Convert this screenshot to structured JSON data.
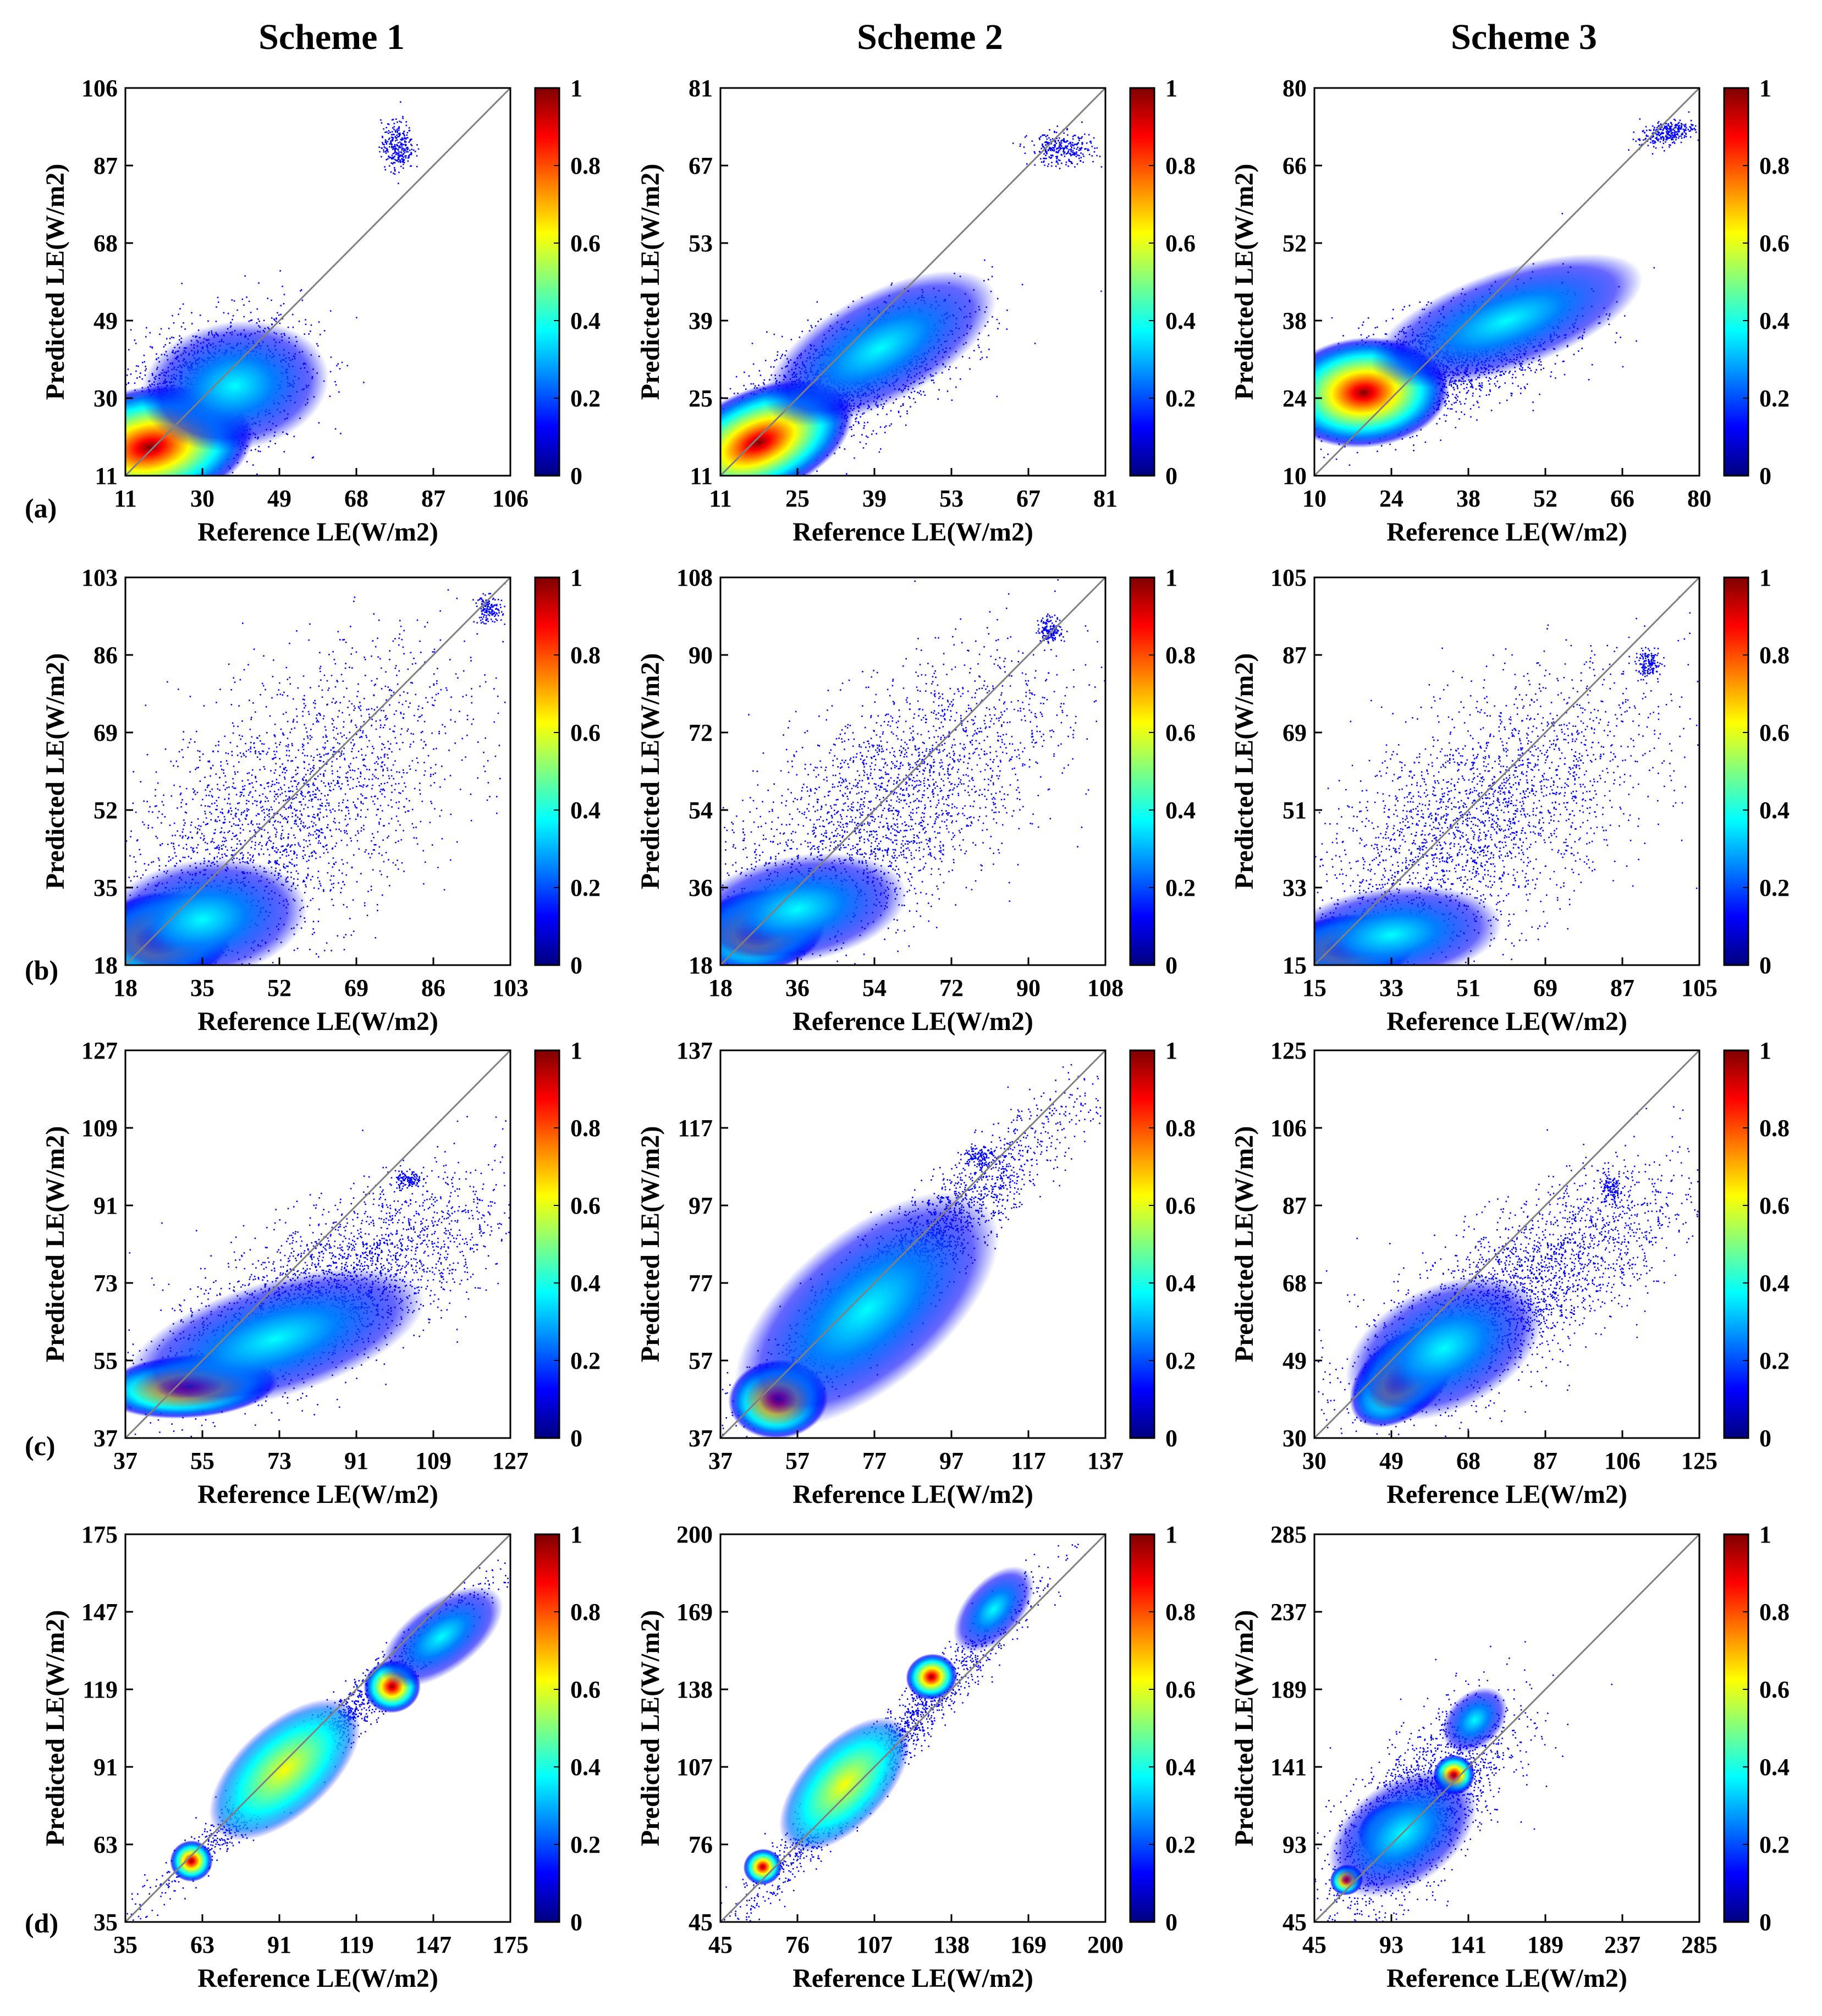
{
  "schemes": [
    "Scheme 1",
    "Scheme 2",
    "Scheme 3"
  ],
  "row_labels": [
    "(a)",
    "(b)",
    "(c)",
    "(d)"
  ],
  "colorbar": {
    "ticks": [
      "0",
      "0.2",
      "0.4",
      "0.6",
      "0.8",
      "1"
    ],
    "stops": [
      "#00007f",
      "#0000ff",
      "#0080ff",
      "#00ffff",
      "#80ff80",
      "#ffff00",
      "#ff8000",
      "#ff0000",
      "#7f0000"
    ]
  },
  "colors": {
    "points": "#0000ff",
    "line": "#808080",
    "axis": "#000000"
  },
  "chart_data": [
    {
      "type": "scatter",
      "row": 0,
      "col": 0,
      "title": "Scheme 1",
      "panel": "(a)",
      "xlabel": "Reference LE(W/m2)",
      "ylabel": "Predicted LE(W/m2)",
      "xlim": [
        11,
        106
      ],
      "ylim": [
        11,
        106
      ],
      "ticks": [
        "11",
        "30",
        "49",
        "68",
        "87",
        "106"
      ],
      "clusters": [
        {
          "x": 17,
          "y": 18,
          "sx": 10,
          "sy": 7,
          "r": 0.45,
          "peak": 1.0
        },
        {
          "x": 38,
          "y": 33,
          "sx": 9,
          "sy": 7,
          "r": 0.35,
          "peak": 0.5
        }
      ],
      "scatter": [
        {
          "x": 30,
          "y": 30,
          "sx": 12,
          "sy": 10,
          "r": 0.4,
          "n": 2200
        },
        {
          "x": 78,
          "y": 92,
          "sx": 2,
          "sy": 3,
          "r": 0.0,
          "n": 300
        }
      ]
    },
    {
      "type": "scatter",
      "row": 0,
      "col": 1,
      "title": "Scheme 2",
      "panel": "(a)",
      "xlabel": "Reference LE(W/m2)",
      "ylabel": "Predicted LE(W/m2)",
      "xlim": [
        11,
        81
      ],
      "ylim": [
        11,
        81
      ],
      "ticks": [
        "11",
        "25",
        "39",
        "53",
        "67",
        "81"
      ],
      "clusters": [
        {
          "x": 18,
          "y": 17,
          "sx": 7,
          "sy": 5,
          "r": 0.6,
          "peak": 1.0
        },
        {
          "x": 40,
          "y": 34,
          "sx": 9,
          "sy": 6,
          "r": 0.8,
          "peak": 0.5
        }
      ],
      "scatter": [
        {
          "x": 33,
          "y": 28,
          "sx": 11,
          "sy": 7,
          "r": 0.7,
          "n": 2200
        },
        {
          "x": 73,
          "y": 70,
          "sx": 3,
          "sy": 1.5,
          "r": 0.0,
          "n": 300
        }
      ]
    },
    {
      "type": "scatter",
      "row": 0,
      "col": 2,
      "title": "Scheme 3",
      "panel": "(a)",
      "xlabel": "Reference LE(W/m2)",
      "ylabel": "Predicted LE(W/m2)",
      "xlim": [
        10,
        80
      ],
      "ylim": [
        10,
        80
      ],
      "ticks": [
        "10",
        "24",
        "38",
        "52",
        "66",
        "80"
      ],
      "clusters": [
        {
          "x": 19,
          "y": 25,
          "sx": 6,
          "sy": 4,
          "r": 0.2,
          "peak": 1.0
        },
        {
          "x": 45,
          "y": 38,
          "sx": 10,
          "sy": 5,
          "r": 0.7,
          "peak": 0.5
        }
      ],
      "scatter": [
        {
          "x": 32,
          "y": 30,
          "sx": 12,
          "sy": 6,
          "r": 0.6,
          "n": 2200
        },
        {
          "x": 74,
          "y": 72,
          "sx": 2.5,
          "sy": 1.2,
          "r": 0.5,
          "n": 300
        }
      ]
    },
    {
      "type": "scatter",
      "row": 1,
      "col": 0,
      "title": "Scheme 1",
      "panel": "(b)",
      "xlabel": "Reference LE(W/m2)",
      "ylabel": "Predicted LE(W/m2)",
      "xlim": [
        18,
        103
      ],
      "ylim": [
        18,
        103
      ],
      "ticks": [
        "18",
        "35",
        "52",
        "69",
        "86",
        "103"
      ],
      "clusters": [
        {
          "x": 26,
          "y": 24,
          "sx": 6,
          "sy": 4,
          "r": 0.2,
          "peak": 1.0
        },
        {
          "x": 35,
          "y": 28,
          "sx": 9,
          "sy": 6,
          "r": 0.4,
          "peak": 0.45
        }
      ],
      "scatter": [
        {
          "x": 52,
          "y": 50,
          "sx": 20,
          "sy": 18,
          "r": 0.6,
          "n": 2600
        },
        {
          "x": 98,
          "y": 96,
          "sx": 1.5,
          "sy": 1.5,
          "r": 0.0,
          "n": 150
        }
      ]
    },
    {
      "type": "scatter",
      "row": 1,
      "col": 1,
      "title": "Scheme 2",
      "panel": "(b)",
      "xlabel": "Reference LE(W/m2)",
      "ylabel": "Predicted LE(W/m2)",
      "xlim": [
        18,
        108
      ],
      "ylim": [
        18,
        108
      ],
      "ticks": [
        "18",
        "36",
        "54",
        "72",
        "90",
        "108"
      ],
      "clusters": [
        {
          "x": 27,
          "y": 26,
          "sx": 6,
          "sy": 4,
          "r": 0.3,
          "peak": 1.0
        },
        {
          "x": 36,
          "y": 31,
          "sx": 10,
          "sy": 6,
          "r": 0.5,
          "peak": 0.45
        }
      ],
      "scatter": [
        {
          "x": 56,
          "y": 54,
          "sx": 20,
          "sy": 18,
          "r": 0.65,
          "n": 2600
        },
        {
          "x": 95,
          "y": 96,
          "sx": 1.5,
          "sy": 1.5,
          "r": 0.0,
          "n": 150
        }
      ]
    },
    {
      "type": "scatter",
      "row": 1,
      "col": 2,
      "title": "Scheme 3",
      "panel": "(b)",
      "xlabel": "Reference LE(W/m2)",
      "ylabel": "Predicted LE(W/m2)",
      "xlim": [
        15,
        105
      ],
      "ylim": [
        15,
        105
      ],
      "ticks": [
        "15",
        "33",
        "51",
        "69",
        "87",
        "105"
      ],
      "clusters": [
        {
          "x": 23,
          "y": 19,
          "sx": 6,
          "sy": 3,
          "r": 0.2,
          "peak": 1.0
        },
        {
          "x": 33,
          "y": 22,
          "sx": 10,
          "sy": 5,
          "r": 0.4,
          "peak": 0.45
        }
      ],
      "scatter": [
        {
          "x": 53,
          "y": 48,
          "sx": 20,
          "sy": 17,
          "r": 0.6,
          "n": 2600
        },
        {
          "x": 93,
          "y": 85,
          "sx": 1.5,
          "sy": 1.5,
          "r": 0.0,
          "n": 150
        }
      ]
    },
    {
      "type": "scatter",
      "row": 2,
      "col": 0,
      "title": "Scheme 1",
      "panel": "(c)",
      "xlabel": "Reference LE(W/m2)",
      "ylabel": "Predicted LE(W/m2)",
      "xlim": [
        37,
        127
      ],
      "ylim": [
        37,
        127
      ],
      "ticks": [
        "37",
        "55",
        "73",
        "91",
        "109",
        "127"
      ],
      "clusters": [
        {
          "x": 52,
          "y": 49,
          "sx": 8,
          "sy": 3,
          "r": 0.3,
          "peak": 1.0
        },
        {
          "x": 72,
          "y": 60,
          "sx": 14,
          "sy": 7,
          "r": 0.6,
          "peak": 0.4
        }
      ],
      "scatter": [
        {
          "x": 85,
          "y": 72,
          "sx": 20,
          "sy": 13,
          "r": 0.7,
          "n": 2600
        },
        {
          "x": 103,
          "y": 97,
          "sx": 1.5,
          "sy": 1,
          "r": 0.0,
          "n": 120
        }
      ]
    },
    {
      "type": "scatter",
      "row": 2,
      "col": 1,
      "title": "Scheme 2",
      "panel": "(c)",
      "xlabel": "Reference LE(W/m2)",
      "ylabel": "Predicted LE(W/m2)",
      "xlim": [
        37,
        137
      ],
      "ylim": [
        37,
        137
      ],
      "ticks": [
        "37",
        "57",
        "77",
        "97",
        "117",
        "137"
      ],
      "clusters": [
        {
          "x": 52,
          "y": 47,
          "sx": 5,
          "sy": 4,
          "r": 0.2,
          "peak": 1.0
        },
        {
          "x": 75,
          "y": 70,
          "sx": 16,
          "sy": 14,
          "r": 0.95,
          "peak": 0.45
        }
      ],
      "scatter": [
        {
          "x": 85,
          "y": 82,
          "sx": 22,
          "sy": 21,
          "r": 0.95,
          "n": 2600
        },
        {
          "x": 104,
          "y": 110,
          "sx": 2,
          "sy": 1.5,
          "r": 0.0,
          "n": 120
        }
      ]
    },
    {
      "type": "scatter",
      "row": 2,
      "col": 2,
      "title": "Scheme 3",
      "panel": "(c)",
      "xlabel": "Reference LE(W/m2)",
      "ylabel": "Predicted LE(W/m2)",
      "xlim": [
        30,
        125
      ],
      "ylim": [
        30,
        125
      ],
      "ticks": [
        "30",
        "49",
        "68",
        "87",
        "106",
        "125"
      ],
      "clusters": [
        {
          "x": 52,
          "y": 45,
          "sx": 6,
          "sy": 7,
          "r": 0.75,
          "peak": 1.0
        },
        {
          "x": 62,
          "y": 52,
          "sx": 10,
          "sy": 8,
          "r": 0.6,
          "peak": 0.4
        }
      ],
      "scatter": [
        {
          "x": 80,
          "y": 66,
          "sx": 20,
          "sy": 15,
          "r": 0.75,
          "n": 2600
        },
        {
          "x": 103,
          "y": 91,
          "sx": 1.5,
          "sy": 2,
          "r": 0.0,
          "n": 120
        }
      ]
    },
    {
      "type": "scatter",
      "row": 3,
      "col": 0,
      "title": "Scheme 1",
      "panel": "(d)",
      "xlabel": "Reference LE(W/m2)",
      "ylabel": "Predicted LE(W/m2)",
      "xlim": [
        35,
        175
      ],
      "ylim": [
        35,
        175
      ],
      "ticks": [
        "35",
        "63",
        "91",
        "119",
        "147",
        "175"
      ],
      "clusters": [
        {
          "x": 59,
          "y": 57,
          "sx": 3,
          "sy": 4,
          "r": 0.2,
          "peak": 1.0
        },
        {
          "x": 93,
          "y": 90,
          "sx": 13,
          "sy": 12,
          "r": 0.97,
          "peak": 0.8
        },
        {
          "x": 132,
          "y": 120,
          "sx": 4,
          "sy": 4,
          "r": 0.2,
          "peak": 1.0
        },
        {
          "x": 150,
          "y": 138,
          "sx": 10,
          "sy": 8,
          "r": 0.9,
          "peak": 0.4
        }
      ],
      "scatter": [
        {
          "x": 105,
          "y": 100,
          "sx": 30,
          "sy": 28,
          "r": 0.985,
          "n": 1800
        }
      ]
    },
    {
      "type": "scatter",
      "row": 3,
      "col": 1,
      "title": "Scheme 2",
      "panel": "(d)",
      "xlabel": "Reference LE(W/m2)",
      "ylabel": "Predicted LE(W/m2)",
      "xlim": [
        45,
        200
      ],
      "ylim": [
        45,
        200
      ],
      "ticks": [
        "45",
        "76",
        "107",
        "138",
        "169",
        "200"
      ],
      "clusters": [
        {
          "x": 62,
          "y": 67,
          "sx": 3,
          "sy": 4,
          "r": 0.3,
          "peak": 1.0
        },
        {
          "x": 95,
          "y": 100,
          "sx": 13,
          "sy": 14,
          "r": 0.97,
          "peak": 0.75
        },
        {
          "x": 130,
          "y": 143,
          "sx": 4,
          "sy": 5,
          "r": 0.3,
          "peak": 1.0
        },
        {
          "x": 155,
          "y": 170,
          "sx": 8,
          "sy": 10,
          "r": 0.9,
          "peak": 0.45
        }
      ],
      "scatter": [
        {
          "x": 110,
          "y": 112,
          "sx": 30,
          "sy": 33,
          "r": 0.98,
          "n": 1800
        }
      ]
    },
    {
      "type": "scatter",
      "row": 3,
      "col": 2,
      "title": "Scheme 3",
      "panel": "(d)",
      "xlabel": "Reference LE(W/m2)",
      "ylabel": "Predicted LE(W/m2)",
      "xlim": [
        45,
        285
      ],
      "ylim": [
        45,
        285
      ],
      "ticks": [
        "45",
        "93",
        "141",
        "189",
        "237",
        "285"
      ],
      "clusters": [
        {
          "x": 65,
          "y": 71,
          "sx": 4,
          "sy": 6,
          "r": 0.4,
          "peak": 1.0
        },
        {
          "x": 95,
          "y": 102,
          "sx": 9,
          "sy": 9,
          "r": 0.5,
          "peak": 0.9
        },
        {
          "x": 132,
          "y": 136,
          "sx": 5,
          "sy": 6,
          "r": 0.2,
          "peak": 1.0
        },
        {
          "x": 145,
          "y": 170,
          "sx": 9,
          "sy": 15,
          "r": 0.6,
          "peak": 0.45
        },
        {
          "x": 100,
          "y": 100,
          "sx": 20,
          "sy": 20,
          "r": 0.7,
          "peak": 0.3
        }
      ],
      "scatter": [
        {
          "x": 110,
          "y": 115,
          "sx": 28,
          "sy": 33,
          "r": 0.7,
          "n": 2200
        }
      ]
    }
  ]
}
